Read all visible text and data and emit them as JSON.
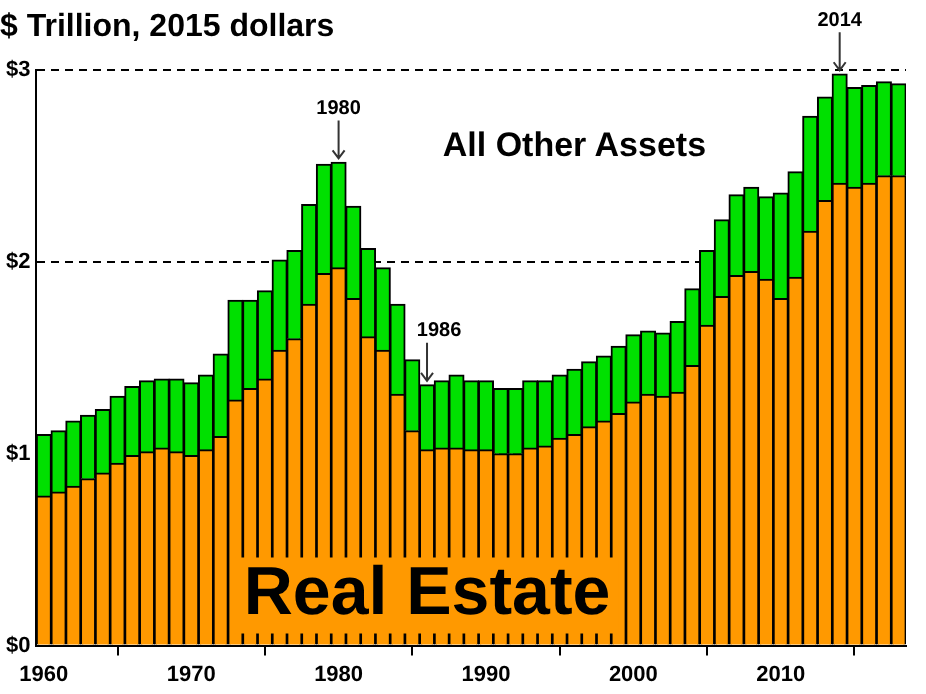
{
  "chart_data": {
    "type": "bar",
    "title": "$ Trillion, 2015 dollars",
    "stacked": true,
    "x": [
      1960,
      1961,
      1962,
      1963,
      1964,
      1965,
      1966,
      1967,
      1968,
      1969,
      1970,
      1971,
      1972,
      1973,
      1974,
      1975,
      1976,
      1977,
      1978,
      1979,
      1980,
      1981,
      1982,
      1983,
      1984,
      1985,
      1986,
      1987,
      1988,
      1989,
      1990,
      1991,
      1992,
      1993,
      1994,
      1995,
      1996,
      1997,
      1998,
      1999,
      2000,
      2001,
      2002,
      2003,
      2004,
      2005,
      2006,
      2007,
      2008,
      2009,
      2010,
      2011,
      2012,
      2013,
      2014,
      2015,
      2016,
      2017,
      2018
    ],
    "series": [
      {
        "name": "Real Estate",
        "color": "#ff9900",
        "values": [
          0.78,
          0.8,
          0.83,
          0.87,
          0.9,
          0.95,
          0.99,
          1.01,
          1.03,
          1.01,
          0.99,
          1.02,
          1.09,
          1.28,
          1.34,
          1.39,
          1.54,
          1.6,
          1.78,
          1.94,
          1.97,
          1.81,
          1.61,
          1.54,
          1.31,
          1.12,
          1.02,
          1.03,
          1.03,
          1.02,
          1.02,
          1.0,
          1.0,
          1.03,
          1.04,
          1.08,
          1.1,
          1.14,
          1.17,
          1.21,
          1.27,
          1.31,
          1.3,
          1.32,
          1.46,
          1.67,
          1.82,
          1.93,
          1.95,
          1.91,
          1.81,
          1.92,
          2.16,
          2.32,
          2.41,
          2.39,
          2.41,
          2.45,
          2.45
        ]
      },
      {
        "name": "All Other Assets",
        "color": "#00e000",
        "values": [
          0.32,
          0.32,
          0.34,
          0.33,
          0.33,
          0.35,
          0.36,
          0.37,
          0.36,
          0.38,
          0.38,
          0.39,
          0.43,
          0.52,
          0.46,
          0.46,
          0.47,
          0.46,
          0.52,
          0.57,
          0.55,
          0.48,
          0.46,
          0.43,
          0.47,
          0.37,
          0.34,
          0.35,
          0.38,
          0.36,
          0.36,
          0.34,
          0.34,
          0.35,
          0.34,
          0.33,
          0.34,
          0.34,
          0.34,
          0.35,
          0.35,
          0.33,
          0.33,
          0.37,
          0.4,
          0.39,
          0.4,
          0.42,
          0.44,
          0.43,
          0.55,
          0.55,
          0.6,
          0.54,
          0.57,
          0.52,
          0.51,
          0.49,
          0.48
        ]
      }
    ],
    "xlim": [
      1959.5,
      2018.5
    ],
    "xticks": [
      1960,
      1970,
      1980,
      1990,
      2000,
      2010
    ],
    "ylim": [
      0,
      3
    ],
    "yticks": [
      {
        "value": 0,
        "label": "$0"
      },
      {
        "value": 1,
        "label": "$1"
      },
      {
        "value": 2,
        "label": "$2"
      },
      {
        "value": 3,
        "label": "$3"
      }
    ],
    "grid": "y",
    "line_style": "dashed",
    "legend": false,
    "annotations": [
      {
        "text": "1980",
        "x": 1980,
        "y": 2.52
      },
      {
        "text": "1986",
        "x": 1986,
        "y": 1.36
      },
      {
        "text": "2014",
        "x": 2014,
        "y": 2.98
      }
    ]
  }
}
